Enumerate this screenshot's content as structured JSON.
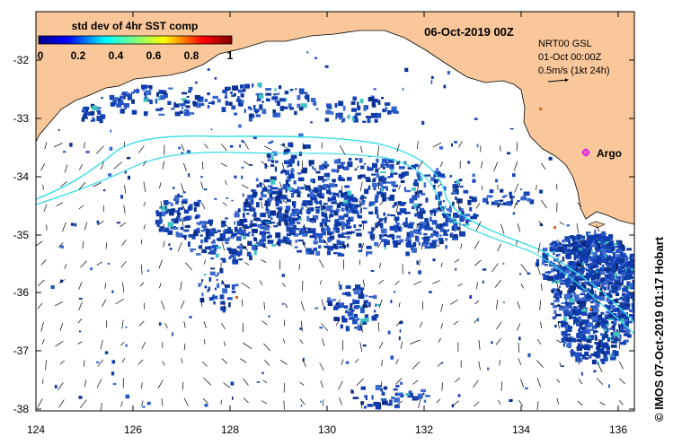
{
  "colors": {
    "land": "#f9c79a",
    "ocean": "#ffffff",
    "track": "#33dde6",
    "sst_low": "#0b3aa6",
    "argo": "#e01ee8",
    "arrow": "#000000"
  },
  "date": "06-Oct-2019 00Z",
  "colorbar": {
    "title": "std dev of 4hr SST comp",
    "ticks": [
      "0",
      "0.2",
      "0.4",
      "0.6",
      "0.8",
      "1"
    ]
  },
  "current_info": {
    "line1": "NRT00 GSL",
    "line2": "01-Oct 00:00Z",
    "line3": "0.5m/s (1kt 24h)"
  },
  "argo": {
    "label": "Argo",
    "lon": 135.5,
    "lat": -33.6
  },
  "axes": {
    "x_ticks": [
      "124",
      "126",
      "128",
      "130",
      "132",
      "134",
      "136"
    ],
    "y_ticks": [
      "-32",
      "-33",
      "-34",
      "-35",
      "-36",
      "-37",
      "-38"
    ]
  },
  "credit": "© IMOS 07-Oct-2019 01:17 Hobart"
}
